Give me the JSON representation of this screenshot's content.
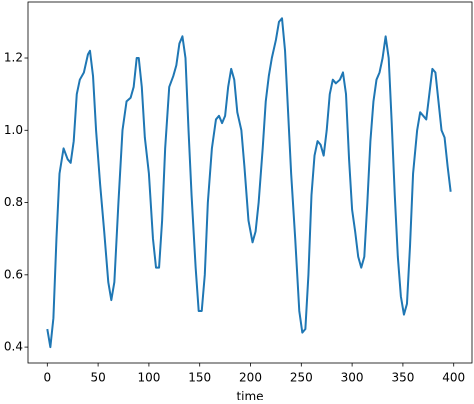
{
  "chart_data": {
    "type": "line",
    "xlabel": "time",
    "x": [
      0,
      3,
      6,
      9,
      12,
      16,
      20,
      23,
      26,
      29,
      32,
      36,
      40,
      42,
      45,
      48,
      52,
      56,
      60,
      63,
      66,
      70,
      74,
      78,
      82,
      85,
      88,
      90,
      93,
      96,
      100,
      104,
      107,
      110,
      113,
      116,
      120,
      124,
      127,
      130,
      133,
      136,
      139,
      142,
      146,
      149,
      152,
      155,
      158,
      162,
      166,
      169,
      172,
      175,
      178,
      181,
      184,
      187,
      191,
      194,
      198,
      202,
      205,
      208,
      212,
      215,
      218,
      221,
      225,
      228,
      231,
      234,
      237,
      240,
      244,
      248,
      251,
      254,
      257,
      260,
      263,
      266,
      269,
      272,
      275,
      278,
      281,
      284,
      288,
      291,
      294,
      297,
      300,
      303,
      306,
      309,
      312,
      315,
      318,
      321,
      324,
      327,
      330,
      333,
      336,
      339,
      342,
      345,
      348,
      351,
      354,
      357,
      360,
      364,
      367,
      370,
      373,
      376,
      379,
      382,
      385,
      388,
      391,
      394,
      397
    ],
    "series": [
      {
        "color": "#1f77b4",
        "values": [
          0.45,
          0.4,
          0.48,
          0.7,
          0.88,
          0.95,
          0.92,
          0.91,
          0.97,
          1.1,
          1.14,
          1.16,
          1.21,
          1.22,
          1.15,
          1.0,
          0.85,
          0.72,
          0.58,
          0.53,
          0.58,
          0.8,
          1.0,
          1.08,
          1.09,
          1.12,
          1.2,
          1.2,
          1.12,
          0.98,
          0.88,
          0.7,
          0.62,
          0.62,
          0.75,
          0.95,
          1.12,
          1.15,
          1.18,
          1.24,
          1.26,
          1.2,
          1.0,
          0.82,
          0.62,
          0.5,
          0.5,
          0.6,
          0.8,
          0.95,
          1.03,
          1.04,
          1.02,
          1.04,
          1.12,
          1.17,
          1.14,
          1.05,
          1.0,
          0.9,
          0.75,
          0.69,
          0.72,
          0.8,
          0.95,
          1.08,
          1.15,
          1.2,
          1.25,
          1.3,
          1.31,
          1.22,
          1.05,
          0.88,
          0.7,
          0.5,
          0.44,
          0.45,
          0.6,
          0.82,
          0.93,
          0.97,
          0.96,
          0.93,
          1.0,
          1.1,
          1.14,
          1.13,
          1.14,
          1.16,
          1.1,
          0.92,
          0.78,
          0.72,
          0.65,
          0.62,
          0.65,
          0.8,
          0.97,
          1.08,
          1.14,
          1.16,
          1.2,
          1.26,
          1.2,
          1.02,
          0.82,
          0.65,
          0.54,
          0.49,
          0.52,
          0.68,
          0.88,
          1.0,
          1.05,
          1.04,
          1.03,
          1.1,
          1.17,
          1.16,
          1.08,
          1.0,
          0.98,
          0.9,
          0.83
        ]
      }
    ],
    "xlim": [
      -19,
      418
    ],
    "ylim": [
      0.356,
      1.355
    ],
    "xticks": [
      0,
      50,
      100,
      150,
      200,
      250,
      300,
      350,
      400
    ],
    "yticks": [
      0.4,
      0.6,
      0.8,
      {
        "value": 1,
        "label": "1.0"
      },
      1.2
    ]
  }
}
